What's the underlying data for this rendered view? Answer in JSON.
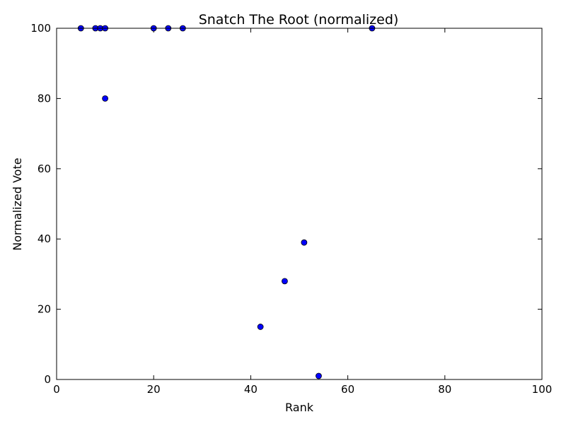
{
  "chart_data": {
    "type": "scatter",
    "title": "Snatch The Root (normalized)",
    "xlabel": "Rank",
    "ylabel": "Normalized Vote",
    "xlim": [
      0,
      100
    ],
    "ylim": [
      0,
      100
    ],
    "x_ticks": [
      0,
      20,
      40,
      60,
      80,
      100
    ],
    "y_ticks": [
      0,
      20,
      40,
      60,
      80,
      100
    ],
    "x_tick_labels": [
      "0",
      "20",
      "40",
      "60",
      "80",
      "100"
    ],
    "y_tick_labels": [
      "0",
      "20",
      "40",
      "60",
      "80",
      "100"
    ],
    "grid": false,
    "marker_color": "#0000ff",
    "marker_edge_color": "#000000",
    "points": [
      {
        "x": 5,
        "y": 100
      },
      {
        "x": 8,
        "y": 100
      },
      {
        "x": 9,
        "y": 100
      },
      {
        "x": 10,
        "y": 100
      },
      {
        "x": 10,
        "y": 80
      },
      {
        "x": 20,
        "y": 100
      },
      {
        "x": 23,
        "y": 100
      },
      {
        "x": 26,
        "y": 100
      },
      {
        "x": 42,
        "y": 15
      },
      {
        "x": 47,
        "y": 28
      },
      {
        "x": 51,
        "y": 39
      },
      {
        "x": 54,
        "y": 1
      },
      {
        "x": 65,
        "y": 100
      }
    ]
  }
}
